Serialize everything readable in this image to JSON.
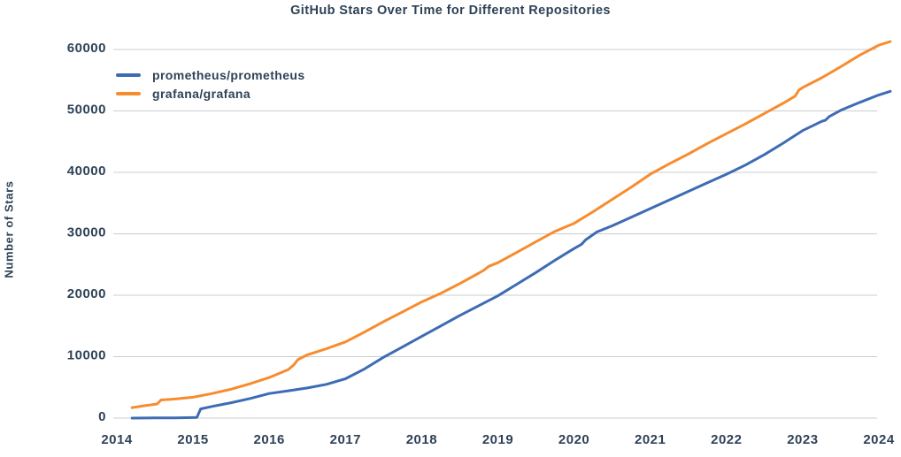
{
  "chart_data": {
    "type": "line",
    "title": "GitHub Stars Over Time for Different Repositories",
    "xlabel": "",
    "ylabel": "Number of Stars",
    "x_ticks": [
      2014,
      2015,
      2016,
      2017,
      2018,
      2019,
      2020,
      2021,
      2022,
      2023,
      2024
    ],
    "y_ticks": [
      0,
      10000,
      20000,
      30000,
      40000,
      50000,
      60000
    ],
    "xlim": [
      2013.95,
      2024.25
    ],
    "ylim": [
      0,
      62500
    ],
    "grid": "horizontal",
    "gridline_color": "#c9cdd1",
    "background_color": "#ffffff",
    "text_color": "#2e4257",
    "legend_position": "upper-left",
    "series": [
      {
        "name": "prometheus/prometheus",
        "color": "#3d6cb4",
        "x": [
          2014.2,
          2014.5,
          2014.75,
          2015.0,
          2015.05,
          2015.1,
          2015.25,
          2015.5,
          2015.75,
          2016.0,
          2016.25,
          2016.5,
          2016.75,
          2017.0,
          2017.25,
          2017.5,
          2017.75,
          2018.0,
          2018.25,
          2018.5,
          2018.75,
          2019.0,
          2019.25,
          2019.5,
          2019.75,
          2020.0,
          2020.1,
          2020.15,
          2020.3,
          2020.5,
          2020.75,
          2021.0,
          2021.25,
          2021.5,
          2021.75,
          2022.0,
          2022.25,
          2022.5,
          2022.75,
          2023.0,
          2023.25,
          2023.3,
          2023.35,
          2023.5,
          2023.75,
          2024.0,
          2024.15
        ],
        "y": [
          0,
          30,
          50,
          80,
          100,
          1500,
          1900,
          2500,
          3200,
          4000,
          4450,
          4900,
          5500,
          6400,
          8000,
          9900,
          11600,
          13300,
          15000,
          16700,
          18300,
          19900,
          21800,
          23700,
          25700,
          27600,
          28300,
          29000,
          30300,
          31300,
          32700,
          34100,
          35500,
          36900,
          38300,
          39700,
          41200,
          42900,
          44800,
          46800,
          48300,
          48500,
          49100,
          50100,
          51400,
          52600,
          53200
        ]
      },
      {
        "name": "grafana/grafana",
        "color": "#f78c2e",
        "x": [
          2014.2,
          2014.35,
          2014.5,
          2014.53,
          2014.58,
          2014.75,
          2015.0,
          2015.25,
          2015.5,
          2015.75,
          2016.0,
          2016.25,
          2016.32,
          2016.38,
          2016.5,
          2016.75,
          2017.0,
          2017.25,
          2017.5,
          2017.75,
          2018.0,
          2018.25,
          2018.5,
          2018.75,
          2018.82,
          2018.88,
          2019.0,
          2019.25,
          2019.5,
          2019.75,
          2020.0,
          2020.25,
          2020.5,
          2020.75,
          2021.0,
          2021.25,
          2021.5,
          2021.75,
          2022.0,
          2022.25,
          2022.5,
          2022.75,
          2022.9,
          2022.95,
          2023.0,
          2023.25,
          2023.5,
          2023.75,
          2024.0,
          2024.15
        ],
        "y": [
          1700,
          2000,
          2250,
          2300,
          2950,
          3100,
          3400,
          4000,
          4700,
          5600,
          6600,
          7900,
          8650,
          9550,
          10300,
          11300,
          12400,
          14000,
          15700,
          17300,
          18900,
          20300,
          21900,
          23600,
          24100,
          24700,
          25300,
          27000,
          28700,
          30400,
          31700,
          33600,
          35600,
          37600,
          39700,
          41400,
          43000,
          44700,
          46300,
          47900,
          49600,
          51300,
          52400,
          53400,
          53800,
          55400,
          57200,
          59100,
          60700,
          61300
        ]
      }
    ]
  }
}
